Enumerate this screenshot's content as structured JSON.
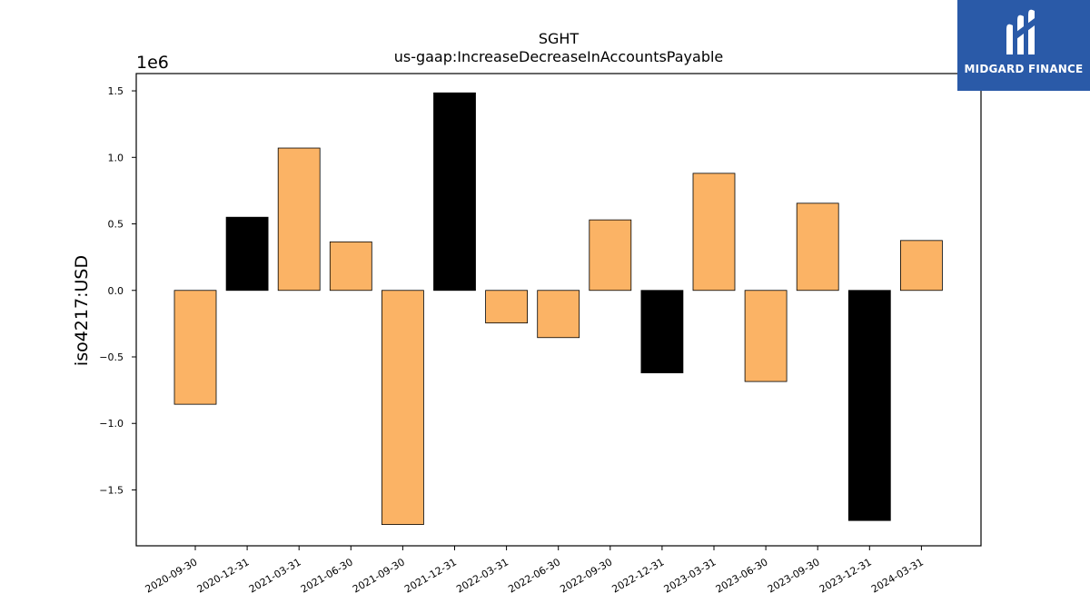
{
  "chart_data": {
    "type": "bar",
    "title": "SGHT",
    "subtitle": "us-gaap:IncreaseDecreaseInAccountsPayable",
    "ylabel": "iso4217:USD",
    "offset_label": "1e6",
    "categories": [
      "2020-09-30",
      "2020-12-31",
      "2021-03-31",
      "2021-06-30",
      "2021-09-30",
      "2021-12-31",
      "2022-03-31",
      "2022-06-30",
      "2022-09-30",
      "2022-12-31",
      "2023-03-31",
      "2023-06-30",
      "2023-09-30",
      "2023-12-31",
      "2024-03-31"
    ],
    "values": [
      -856000,
      550000,
      1070000,
      365000,
      -1760000,
      1485000,
      -245000,
      -355000,
      530000,
      -620000,
      880000,
      -685000,
      655000,
      -1730000,
      375000
    ],
    "highlight": [
      false,
      true,
      false,
      false,
      false,
      true,
      false,
      false,
      false,
      true,
      false,
      false,
      false,
      true,
      false
    ],
    "ylim": [
      -1.92,
      1.63
    ],
    "yticks": [
      -1.5,
      -1.0,
      -0.5,
      0.0,
      0.5,
      1.0,
      1.5
    ],
    "ytick_labels": [
      "−1.5",
      "−1.0",
      "−0.5",
      "0.0",
      "0.5",
      "1.0",
      "1.5"
    ],
    "colors": {
      "bar": "#fbb365",
      "highlight": "#000000",
      "edge": "#000000"
    },
    "grid": false
  },
  "logo": {
    "text": "MIDGARD FINANCE"
  }
}
